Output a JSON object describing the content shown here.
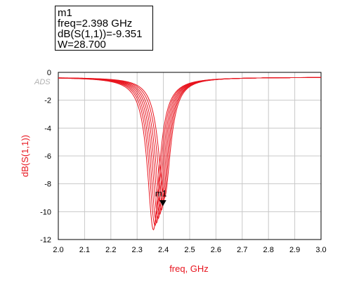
{
  "marker": {
    "name": "m1",
    "freq": "freq=2.398 GHz",
    "value": "dB(S(1,1))=-9.351",
    "param": "W=28.700"
  },
  "watermark": "ADS",
  "colors": {
    "trace": "#e8141e",
    "axis_text": "#e8141e",
    "grid": "#c8c8c8",
    "frame": "#000000"
  },
  "chart_data": {
    "type": "line",
    "title": "",
    "xlabel": "freq, GHz",
    "ylabel": "dB(S(1,1))",
    "xlim": [
      2.0,
      3.0
    ],
    "ylim": [
      -12,
      0
    ],
    "xticks": [
      "2.0",
      "2.1",
      "2.2",
      "2.3",
      "2.4",
      "2.5",
      "2.6",
      "2.7",
      "2.8",
      "2.9",
      "3.0"
    ],
    "yticks": [
      "0",
      "-2",
      "-4",
      "-6",
      "-8",
      "-10",
      "-12"
    ],
    "grid": true,
    "baseline_db": -0.35,
    "series": [
      {
        "resonance_ghz": 2.362,
        "min_db": -11.3
      },
      {
        "resonance_ghz": 2.368,
        "min_db": -11.0
      },
      {
        "resonance_ghz": 2.374,
        "min_db": -10.8
      },
      {
        "resonance_ghz": 2.38,
        "min_db": -10.5
      },
      {
        "resonance_ghz": 2.386,
        "min_db": -10.2
      },
      {
        "resonance_ghz": 2.392,
        "min_db": -9.9
      },
      {
        "resonance_ghz": 2.398,
        "min_db": -9.4
      },
      {
        "resonance_ghz": 2.404,
        "min_db": -9.0
      }
    ],
    "marker_point": {
      "label": "m1",
      "x": 2.398,
      "y": -9.351
    }
  }
}
